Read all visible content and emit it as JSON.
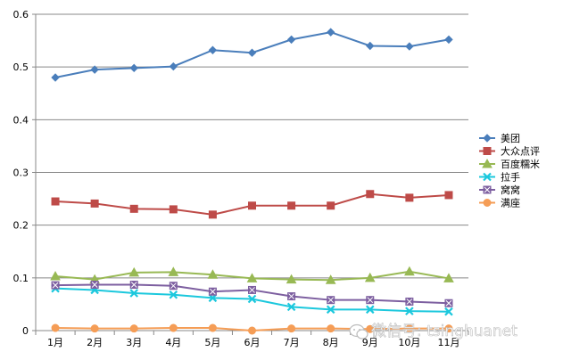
{
  "chart_data": {
    "type": "line",
    "categories": [
      "1月",
      "2月",
      "3月",
      "4月",
      "5月",
      "6月",
      "7月",
      "8月",
      "9月",
      "10月",
      "11月"
    ],
    "ylim": [
      0,
      0.6
    ],
    "yticks": [
      "0",
      "0.1",
      "0.2",
      "0.3",
      "0.4",
      "0.5",
      "0.6"
    ],
    "grid": "horizontal",
    "legend_position": "right",
    "series": [
      {
        "name": "美团",
        "color": "#4a7ebb",
        "marker": "diamond",
        "values": [
          0.48,
          0.495,
          0.498,
          0.501,
          0.532,
          0.527,
          0.552,
          0.566,
          0.54,
          0.539,
          0.552
        ]
      },
      {
        "name": "大众点评",
        "color": "#be4b48",
        "marker": "square",
        "values": [
          0.245,
          0.241,
          0.231,
          0.23,
          0.22,
          0.237,
          0.237,
          0.237,
          0.259,
          0.252,
          0.257
        ]
      },
      {
        "name": "百度糯米",
        "color": "#98b954",
        "marker": "triangle",
        "values": [
          0.103,
          0.097,
          0.11,
          0.111,
          0.106,
          0.099,
          0.097,
          0.096,
          0.1,
          0.112,
          0.099
        ]
      },
      {
        "name": "拉手",
        "color": "#1cc8dd",
        "marker": "x",
        "values": [
          0.08,
          0.077,
          0.071,
          0.068,
          0.062,
          0.06,
          0.045,
          0.04,
          0.04,
          0.037,
          0.036
        ]
      },
      {
        "name": "窝窝",
        "color": "#7d5fa0",
        "marker": "star",
        "values": [
          0.086,
          0.087,
          0.087,
          0.085,
          0.074,
          0.077,
          0.065,
          0.058,
          0.058,
          0.055,
          0.052
        ]
      },
      {
        "name": "满座",
        "color": "#f59d56",
        "marker": "circle",
        "values": [
          0.005,
          0.004,
          0.004,
          0.005,
          0.005,
          0.0,
          0.004,
          0.004,
          0.003,
          0.004,
          0.004
        ]
      }
    ]
  },
  "watermark": {
    "text": "微信号: tsinghuanet",
    "icon": "wechat-icon"
  }
}
